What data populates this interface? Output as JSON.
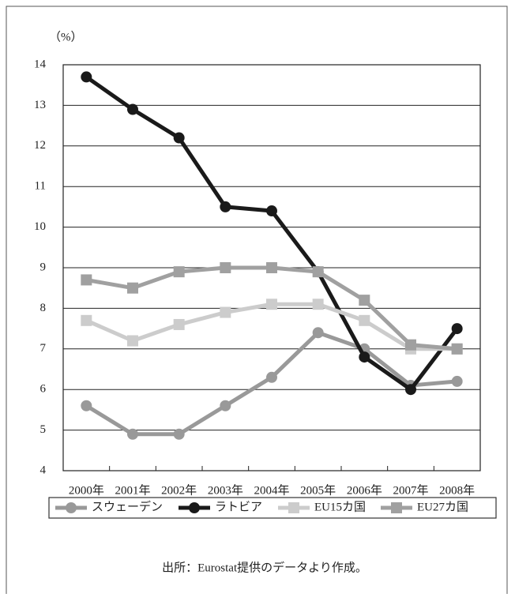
{
  "chart_data": {
    "type": "line",
    "y_unit": "（%）",
    "source": "出所：Eurostat提供のデータより作成。",
    "categories": [
      "2000年",
      "2001年",
      "2002年",
      "2003年",
      "2004年",
      "2005年",
      "2006年",
      "2007年",
      "2008年"
    ],
    "series": [
      {
        "name": "スウェーデン",
        "color": "#999999",
        "marker": "circle",
        "values": [
          5.6,
          4.9,
          4.9,
          5.6,
          6.3,
          7.4,
          7.0,
          6.1,
          6.2
        ]
      },
      {
        "name": "ラトビア",
        "color": "#1a1a1a",
        "marker": "circle",
        "values": [
          13.7,
          12.9,
          12.2,
          10.5,
          10.4,
          8.9,
          6.8,
          6.0,
          7.5
        ]
      },
      {
        "name": "EU15カ国",
        "color": "#cccccc",
        "marker": "square",
        "values": [
          7.7,
          7.2,
          7.6,
          7.9,
          8.1,
          8.1,
          7.7,
          7.0,
          7.0
        ]
      },
      {
        "name": "EU27カ国",
        "color": "#a0a0a0",
        "marker": "square",
        "values": [
          8.7,
          8.5,
          8.9,
          9.0,
          9.0,
          8.9,
          8.2,
          7.1,
          7.0
        ]
      }
    ],
    "ylim": [
      4,
      14
    ],
    "yticks": [
      4,
      5,
      6,
      7,
      8,
      9,
      10,
      11,
      12,
      13,
      14
    ],
    "grid": true,
    "legend": "bottom"
  }
}
